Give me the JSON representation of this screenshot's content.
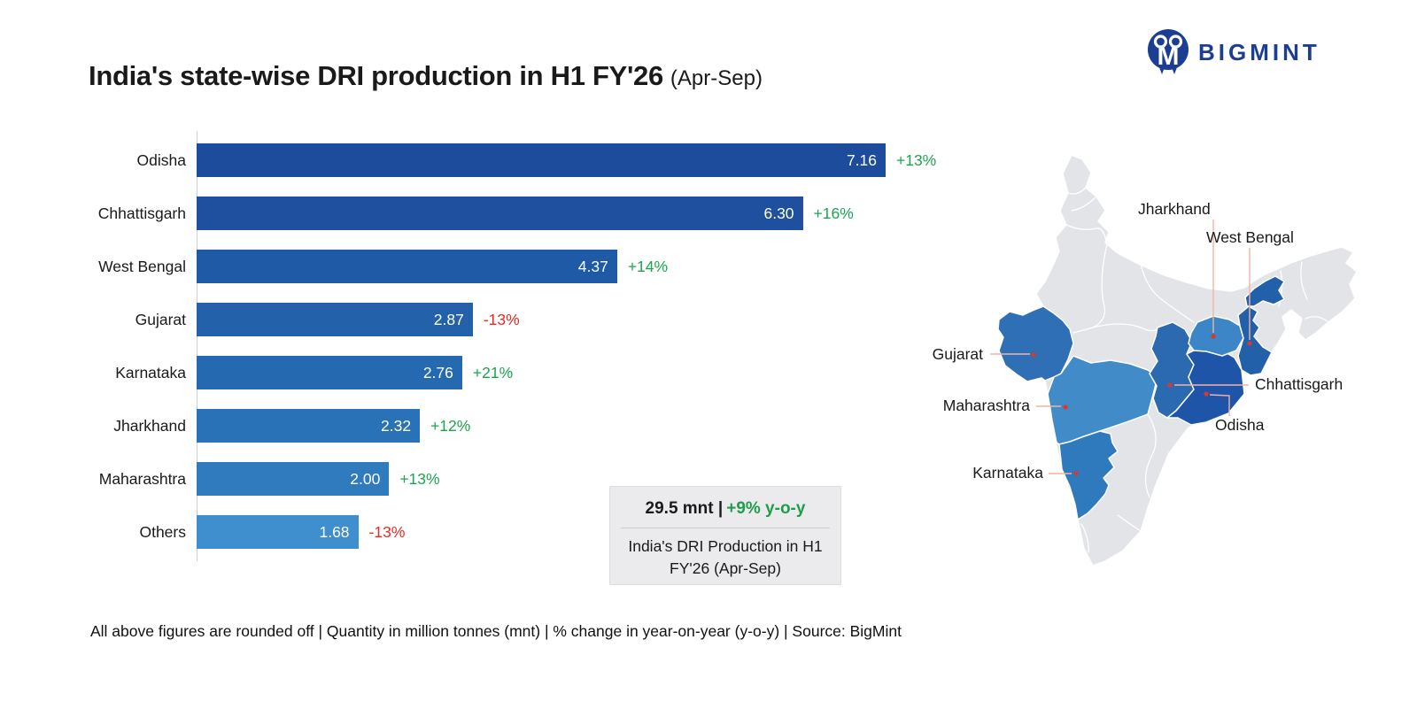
{
  "title": {
    "main": "India's state-wise DRI production in H1 FY'26",
    "suffix": "(Apr-Sep)"
  },
  "logo": {
    "text": "BIGMINT",
    "color": "#1b3e92"
  },
  "chart_data": {
    "type": "bar",
    "orientation": "horizontal",
    "title": "India's state-wise DRI production in H1 FY'26 (Apr-Sep)",
    "unit": "mnt",
    "xlabel": "",
    "ylabel": "",
    "grid": false,
    "xlim": [
      0,
      7.16
    ],
    "categories": [
      "Odisha",
      "Chhattisgarh",
      "West Bengal",
      "Gujarat",
      "Karnataka",
      "Jharkhand",
      "Maharashtra",
      "Others"
    ],
    "values": [
      7.16,
      6.3,
      4.37,
      2.87,
      2.76,
      2.32,
      2.0,
      1.68
    ],
    "value_labels": [
      "7.16",
      "6.30",
      "4.37",
      "2.87",
      "2.76",
      "2.32",
      "2.00",
      "1.68"
    ],
    "pct_change": [
      "+13%",
      "+16%",
      "+14%",
      "-13%",
      "+21%",
      "+12%",
      "+13%",
      "-13%"
    ],
    "bar_colors": [
      "#1d4c9c",
      "#1e509f",
      "#1f5aa6",
      "#2362ab",
      "#2569b0",
      "#2a72b7",
      "#2f7bbd",
      "#3f8ecd"
    ]
  },
  "summary_box": {
    "headline_value": "29.5 mnt |",
    "headline_change": "+9% y-o-y",
    "caption_line1": "India's DRI Production in H1",
    "caption_line2": "FY'26 (Apr-Sep)"
  },
  "map": {
    "base_color": "#e3e4e7",
    "leader_color": "#efb3a7",
    "dot_color": "#d63a2f",
    "labels": {
      "jharkhand": "Jharkhand",
      "west_bengal": "West Bengal",
      "gujarat": "Gujarat",
      "maharashtra": "Maharashtra",
      "chhattisgarh": "Chhattisgarh",
      "odisha": "Odisha",
      "karnataka": "Karnataka"
    },
    "state_colors": {
      "gujarat": "#2e6fb5",
      "maharashtra": "#418bc9",
      "karnataka": "#2f7abc",
      "chhattisgarh": "#2b6ab1",
      "odisha": "#1e55a8",
      "jharkhand": "#3c85c6",
      "west_bengal": "#2260aa"
    }
  },
  "footer": {
    "text": "All above figures are rounded off | Quantity in million tonnes (mnt) | % change in year-on-year (y-o-y) | Source: BigMint"
  },
  "colors": {
    "positive": "#1aa64e",
    "negative": "#ee2724",
    "axis": "#cfcfcf"
  }
}
